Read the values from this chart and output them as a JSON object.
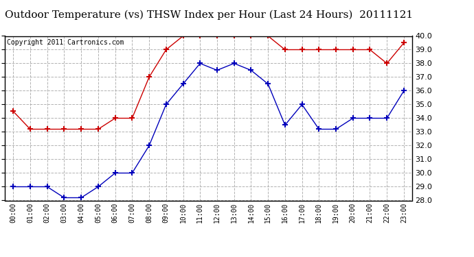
{
  "title": "Outdoor Temperature (vs) THSW Index per Hour (Last 24 Hours)  20111121",
  "copyright_text": "Copyright 2011 Cartronics.com",
  "hours": [
    "00:00",
    "01:00",
    "02:00",
    "03:00",
    "04:00",
    "05:00",
    "06:00",
    "07:00",
    "08:00",
    "09:00",
    "10:00",
    "11:00",
    "12:00",
    "13:00",
    "14:00",
    "15:00",
    "16:00",
    "17:00",
    "18:00",
    "19:00",
    "20:00",
    "21:00",
    "22:00",
    "23:00"
  ],
  "blue_data": [
    29.0,
    29.0,
    29.0,
    28.2,
    28.2,
    29.0,
    30.0,
    30.0,
    32.0,
    35.0,
    36.5,
    38.0,
    37.5,
    38.0,
    37.5,
    36.5,
    33.5,
    35.0,
    33.2,
    33.2,
    34.0,
    34.0,
    34.0,
    36.0
  ],
  "red_data": [
    34.5,
    33.2,
    33.2,
    33.2,
    33.2,
    33.2,
    34.0,
    34.0,
    37.0,
    39.0,
    40.0,
    40.0,
    40.0,
    40.0,
    40.0,
    40.0,
    39.0,
    39.0,
    39.0,
    39.0,
    39.0,
    39.0,
    38.0,
    39.5
  ],
  "ylim": [
    28.0,
    40.0
  ],
  "yticks": [
    28.0,
    29.0,
    30.0,
    31.0,
    32.0,
    33.0,
    34.0,
    35.0,
    36.0,
    37.0,
    38.0,
    39.0,
    40.0
  ],
  "blue_color": "#0000bb",
  "red_color": "#cc0000",
  "bg_color": "#ffffff",
  "grid_color": "#aaaaaa",
  "title_fontsize": 11,
  "copyright_fontsize": 7,
  "marker": "+",
  "markersize": 6,
  "markeredgewidth": 1.5
}
